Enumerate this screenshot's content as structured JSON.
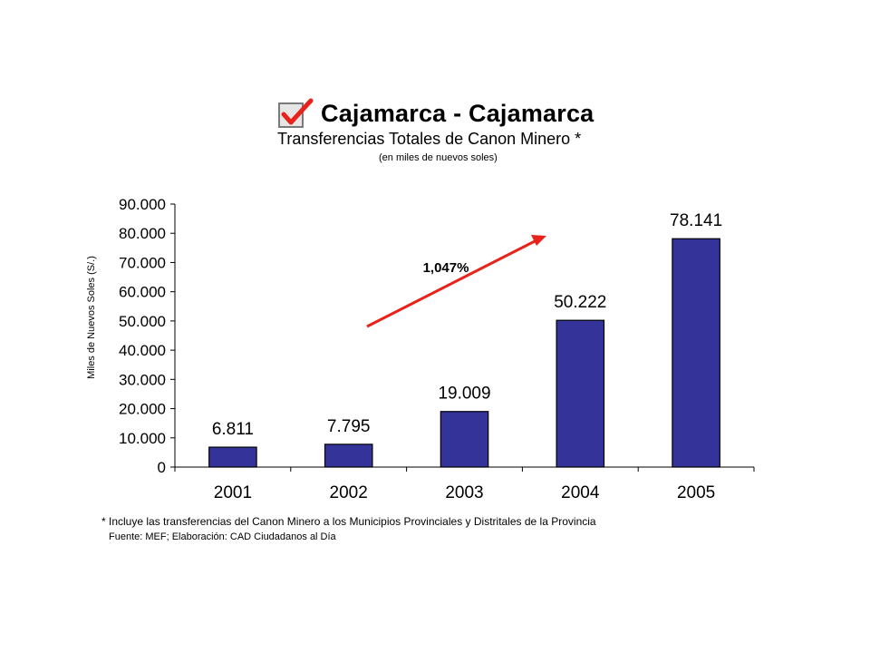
{
  "header": {
    "title": "Cajamarca - Cajamarca",
    "subtitle": "Transferencias Totales de Canon Minero *",
    "units": "(en miles de nuevos soles)"
  },
  "chart_data": {
    "type": "bar",
    "categories": [
      "2001",
      "2002",
      "2003",
      "2004",
      "2005"
    ],
    "values": [
      6811,
      7795,
      19009,
      50222,
      78141
    ],
    "data_labels": [
      "6.811",
      "7.795",
      "19.009",
      "50.222",
      "78.141"
    ],
    "ylabel": "Miles de Nuevos Soles (S/.)",
    "ylim": [
      0,
      90000
    ],
    "yticks": [
      0,
      10000,
      20000,
      30000,
      40000,
      50000,
      60000,
      70000,
      80000,
      90000
    ],
    "ytick_labels": [
      "0",
      "10.000",
      "20.000",
      "30.000",
      "40.000",
      "50.000",
      "60.000",
      "70.000",
      "80.000",
      "90.000"
    ],
    "bar_color": "#333399",
    "annotation": {
      "text": "1,047%",
      "arrow_color": "#e8231c"
    },
    "grid": false,
    "legend": "none"
  },
  "footer": {
    "note": "* Incluye las transferencias del Canon Minero a los Municipios Provinciales y Distritales de la Provincia",
    "source": "Fuente: MEF; Elaboración: CAD Ciudadanos al Día"
  },
  "icons": {
    "title_icon": "checkbox-check-icon",
    "check_color": "#e8231c"
  }
}
